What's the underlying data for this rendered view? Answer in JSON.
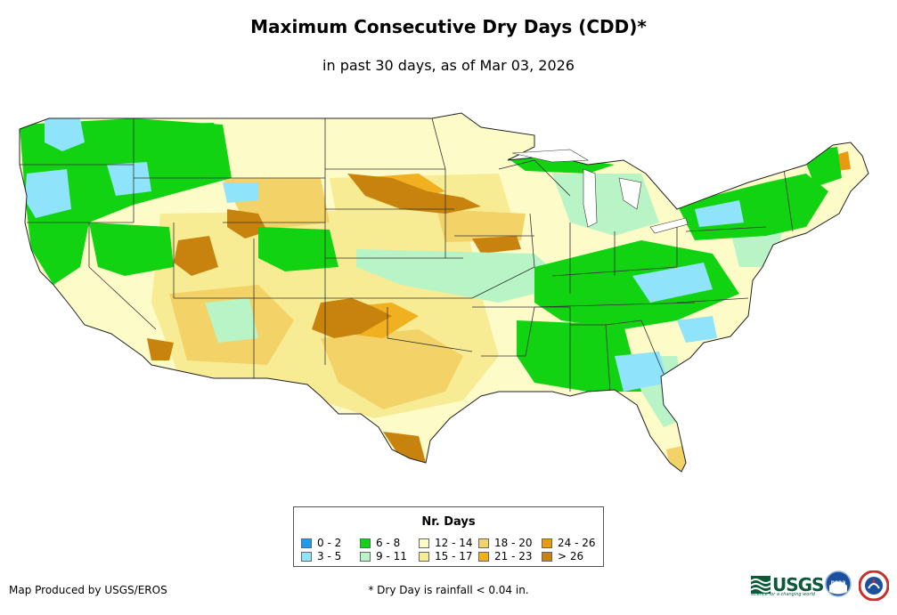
{
  "title": "Maximum Consecutive Dry Days (CDD)*",
  "subtitle": "in past 30 days, as of Mar 03, 2026",
  "legend": {
    "title": "Nr. Days",
    "items": [
      {
        "label": "0 - 2",
        "color": "#1e9cf0"
      },
      {
        "label": "3 - 5",
        "color": "#8fe3fb"
      },
      {
        "label": "6 - 8",
        "color": "#12d312"
      },
      {
        "label": "9 - 11",
        "color": "#b8f4c6"
      },
      {
        "label": "12 - 14",
        "color": "#fdfbc8"
      },
      {
        "label": "15 - 17",
        "color": "#f7ec94"
      },
      {
        "label": "18 - 20",
        "color": "#f3d268"
      },
      {
        "label": "21 - 23",
        "color": "#f0b020"
      },
      {
        "label": "24 - 26",
        "color": "#e89a12"
      },
      {
        "label": "> 26",
        "color": "#c7830e"
      }
    ]
  },
  "credit": "Map Produced by USGS/EROS",
  "footnote": "* Dry Day is rainfall < 0.04 in.",
  "logos": {
    "usgs_text": "USGS",
    "usgs_tagline": "science for a changing world",
    "noaa_text": "noaa"
  }
}
